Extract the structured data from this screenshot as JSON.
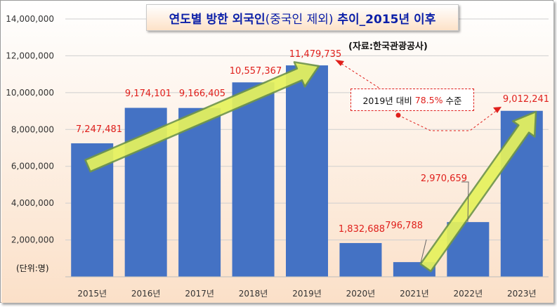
{
  "title": {
    "main": "연도별 방한 외국인",
    "paren": "(중국인 제외)",
    "tail": " 추이_2015년 이후"
  },
  "source": "(자료:한국관광공사)",
  "unit_label": "(단위:명)",
  "callout": {
    "prefix": "2019년 대비",
    "percent": "78.5%",
    "suffix": "수준"
  },
  "colors": {
    "bar": "#4472c4",
    "label": "#e0201c",
    "arrow_fill": "#e6f25c",
    "arrow_stroke": "#71964a",
    "title": "#0a1fa8"
  },
  "chart_data": {
    "type": "bar",
    "categories": [
      "2015년",
      "2016년",
      "2017년",
      "2018년",
      "2019년",
      "2020년",
      "2021년",
      "2022년",
      "2023년"
    ],
    "values": [
      7247481,
      9174101,
      9166405,
      10557367,
      11479735,
      1832688,
      796788,
      2970659,
      9012241
    ],
    "data_labels": [
      "7,247,481",
      "9,174,101",
      "9,166,405",
      "10,557,367",
      "11,479,735",
      "1,832,688",
      "796,788",
      "2,970,659",
      "9,012,241"
    ],
    "ylim": [
      0,
      14000000
    ],
    "yticks": [
      0,
      2000000,
      4000000,
      6000000,
      8000000,
      10000000,
      12000000,
      14000000
    ],
    "ytick_labels": [
      "",
      "2,000,000",
      "4,000,000",
      "6,000,000",
      "8,000,000",
      "10,000,000",
      "12,000,000",
      "14,000,000"
    ],
    "grid": true,
    "legend": "none"
  }
}
